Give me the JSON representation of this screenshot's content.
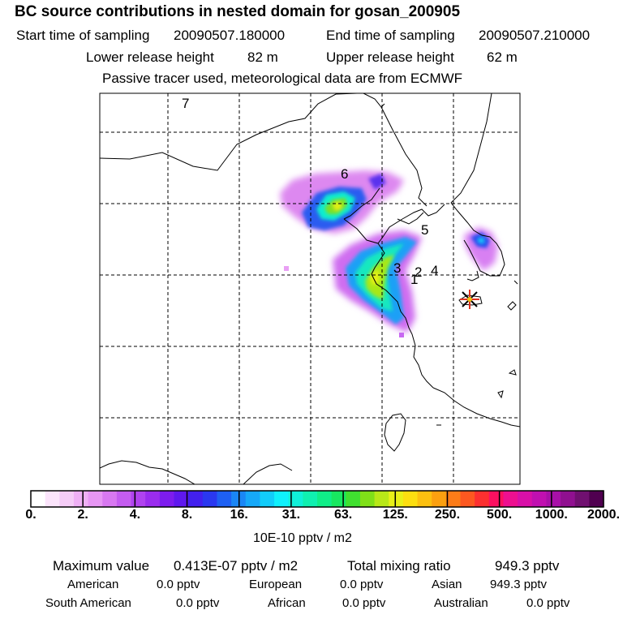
{
  "header": {
    "title": "BC  source contributions in nested domain for gosan_200905",
    "start_label": "Start time of sampling",
    "start_value": "20090507.180000",
    "end_label": "End time of sampling",
    "end_value": "20090507.210000",
    "lower_label": "Lower release height",
    "lower_value": "82 m",
    "upper_label": "Upper release height",
    "upper_value": "62 m",
    "note": "Passive tracer used, meteorological data are from ECMWF"
  },
  "map": {
    "grid": true,
    "point_labels": [
      "7",
      "6",
      "5",
      "3",
      "2",
      "4",
      "1"
    ],
    "receptor_marker": "star-marker"
  },
  "colorbar": {
    "ticks": [
      "0.",
      "2.",
      "4.",
      "8.",
      "16.",
      "31.",
      "63.",
      "125.",
      "250.",
      "500.",
      "1000.",
      "2000."
    ],
    "unit": "10E-10 pptv / m2",
    "colors": [
      "#ffffff",
      "#fbe4fb",
      "#f5ccf7",
      "#efb0f5",
      "#e796f4",
      "#d878f1",
      "#c45cf0",
      "#b042ef",
      "#9a2cee",
      "#7d1cee",
      "#5f18ee",
      "#4220ee",
      "#2a38f0",
      "#1e60f2",
      "#1a86f5",
      "#16a8f8",
      "#12ccfa",
      "#0ff0fc",
      "#10f0d8",
      "#10f0b0",
      "#10ee88",
      "#18e860",
      "#40e030",
      "#80e018",
      "#b8e818",
      "#e8f018",
      "#fcde10",
      "#fcc010",
      "#fca010",
      "#fc7c18",
      "#fc5820",
      "#fc3030",
      "#fc1060",
      "#ee1090",
      "#d810a8",
      "#c010b0",
      "#a810a8",
      "#901090",
      "#701070",
      "#500050"
    ]
  },
  "stats": {
    "max_label": "Maximum value",
    "max_value": "0.413E-07 pptv / m2",
    "total_label": "Total mixing ratio",
    "total_value": "949.3 pptv"
  },
  "regions": [
    {
      "name": "American",
      "value": "0.0 pptv"
    },
    {
      "name": "European",
      "value": "0.0 pptv"
    },
    {
      "name": "Asian",
      "value": "949.3 pptv"
    },
    {
      "name": "South American",
      "value": "0.0 pptv"
    },
    {
      "name": "African",
      "value": "0.0 pptv"
    },
    {
      "name": "Australian",
      "value": "0.0 pptv"
    }
  ]
}
